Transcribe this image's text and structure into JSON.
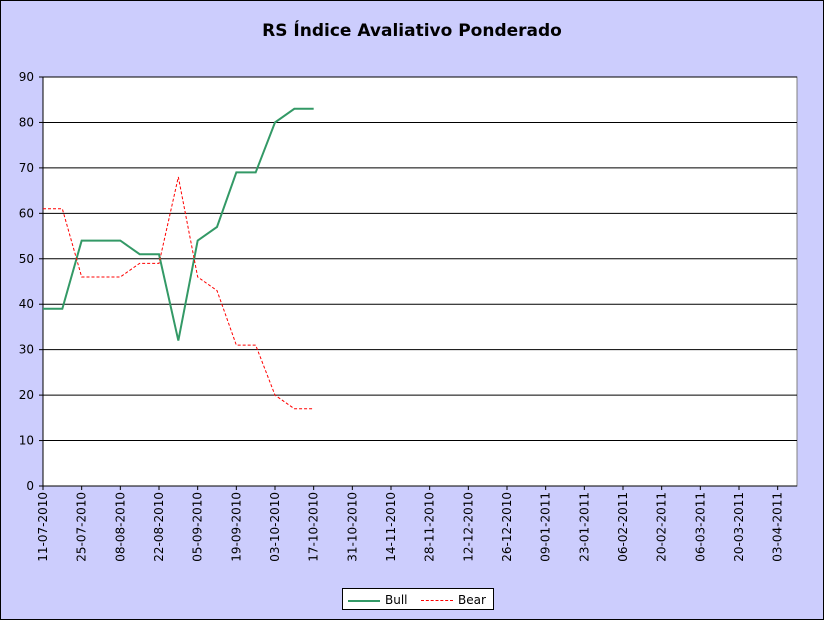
{
  "chart_data": {
    "type": "line",
    "title": "RS Índice Avaliativo Ponderado",
    "ylim": [
      0,
      90
    ],
    "yticks": [
      0,
      10,
      20,
      30,
      40,
      50,
      60,
      70,
      80,
      90
    ],
    "grid": true,
    "legend_position": "bottom",
    "xlim": [
      "11-07-2010",
      "10-04-2011"
    ],
    "x_tick_labels": [
      "11-07-2010",
      "25-07-2010",
      "08-08-2010",
      "22-08-2010",
      "05-09-2010",
      "19-09-2010",
      "03-10-2010",
      "17-10-2010",
      "31-10-2010",
      "14-11-2010",
      "28-11-2010",
      "12-12-2010",
      "26-12-2010",
      "09-01-2011",
      "23-01-2011",
      "06-02-2011",
      "20-02-2011",
      "06-03-2011",
      "20-03-2011",
      "03-04-2011"
    ],
    "x": [
      "11-07-2010",
      "18-07-2010",
      "25-07-2010",
      "01-08-2010",
      "08-08-2010",
      "15-08-2010",
      "22-08-2010",
      "29-08-2010",
      "05-09-2010",
      "12-09-2010",
      "19-09-2010",
      "26-09-2010",
      "03-10-2010",
      "10-10-2010",
      "17-10-2010"
    ],
    "series": [
      {
        "name": "Bull",
        "color": "#339966",
        "style": "solid",
        "values": [
          39,
          39,
          54,
          54,
          54,
          51,
          51,
          32,
          54,
          57,
          69,
          69,
          80,
          83,
          83
        ]
      },
      {
        "name": "Bear",
        "color": "#ff0000",
        "style": "dashed",
        "values": [
          61,
          61,
          46,
          46,
          46,
          49,
          49,
          68,
          46,
          43,
          31,
          31,
          20,
          17,
          17
        ]
      }
    ]
  }
}
